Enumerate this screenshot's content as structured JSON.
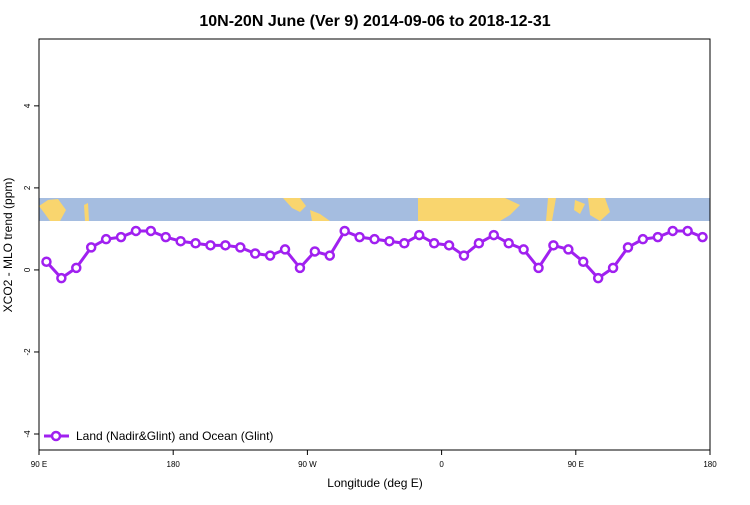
{
  "chart_data": {
    "type": "line",
    "title": "10N-20N June (Ver 9)   2014-09-06 to 2018-12-31",
    "x_label": "Longitude (deg E)",
    "y_label": "XCO2 - MLO trend (ppm)",
    "x": [
      95,
      105,
      115,
      125,
      135,
      145,
      155,
      165,
      175,
      185,
      195,
      205,
      215,
      225,
      235,
      245,
      255,
      265,
      275,
      285,
      295,
      305,
      315,
      325,
      335,
      345,
      355,
      365,
      375,
      385,
      395,
      405,
      415,
      425,
      435,
      445,
      455,
      465,
      475,
      485,
      495,
      505,
      515,
      525,
      535
    ],
    "series": [
      {
        "name": "Land (Nadir&Glint) and Ocean (Glint)",
        "color": "#a020f0",
        "values": [
          0.2,
          -0.2,
          0.05,
          0.55,
          0.75,
          0.8,
          0.95,
          0.95,
          0.8,
          0.7,
          0.65,
          0.6,
          0.6,
          0.55,
          0.4,
          0.35,
          0.5,
          0.05,
          0.45,
          0.35,
          0.95,
          0.8,
          0.75,
          0.7,
          0.65,
          0.85,
          0.65,
          0.6,
          0.35,
          0.65,
          0.85,
          0.65,
          0.5,
          0.05,
          0.6,
          0.5,
          0.2,
          -0.2,
          0.05,
          0.55,
          0.75,
          0.8,
          0.95,
          0.95,
          0.8
        ]
      }
    ],
    "xlim": [
      90,
      540
    ],
    "xticks": [
      {
        "value": 90,
        "label": "90 E"
      },
      180,
      {
        "value": 270,
        "label": "90 W"
      },
      {
        "value": 360,
        "label": "0"
      },
      {
        "value": 450,
        "label": "90 E"
      },
      {
        "value": 540,
        "label": "180"
      }
    ],
    "ylim": [
      -4.39,
      5.63
    ],
    "yticks": [
      -4,
      -2,
      0,
      2,
      4
    ],
    "legend": "bottom-left"
  }
}
